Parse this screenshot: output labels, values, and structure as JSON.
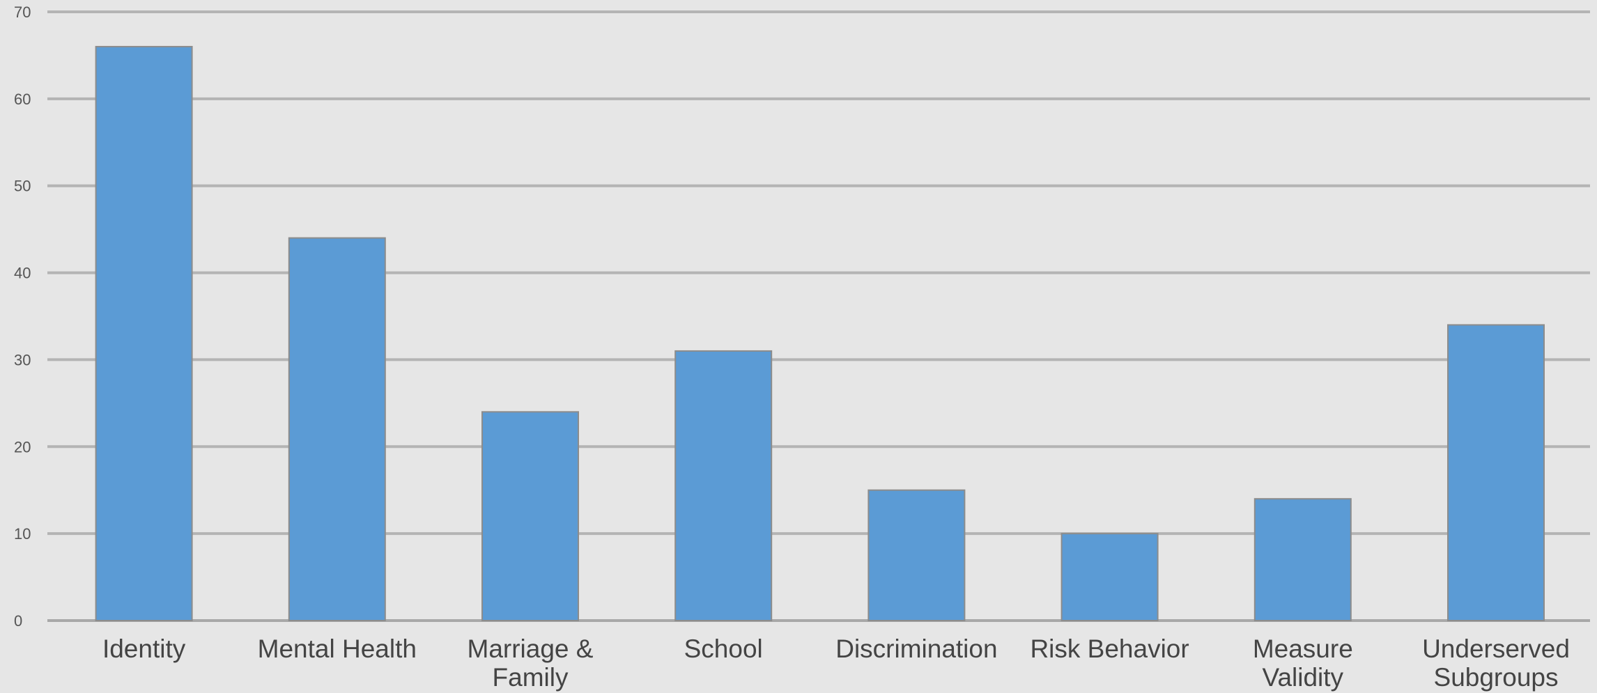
{
  "chart_data": {
    "type": "bar",
    "title": "",
    "xlabel": "",
    "ylabel": "",
    "categories": [
      "Identity",
      "Mental Health",
      "Marriage & Family",
      "School",
      "Discrimination",
      "Risk Behavior",
      "Measure Validity",
      "Underserved Subgroups"
    ],
    "category_lines": [
      [
        "Identity"
      ],
      [
        "Mental Health"
      ],
      [
        "Marriage &",
        "Family"
      ],
      [
        "School"
      ],
      [
        "Discrimination"
      ],
      [
        "Risk Behavior"
      ],
      [
        "Measure",
        "Validity"
      ],
      [
        "Underserved",
        "Subgroups"
      ]
    ],
    "values": [
      66,
      44,
      24,
      31,
      15,
      10,
      14,
      34
    ],
    "ylim": [
      0,
      70
    ],
    "yticks": [
      0,
      10,
      20,
      30,
      40,
      50,
      60,
      70
    ],
    "grid": true,
    "legend": "none",
    "colors": {
      "bar": "#5b9bd5",
      "grid": "#b4b4b4",
      "background": "#e6e6e6"
    }
  }
}
